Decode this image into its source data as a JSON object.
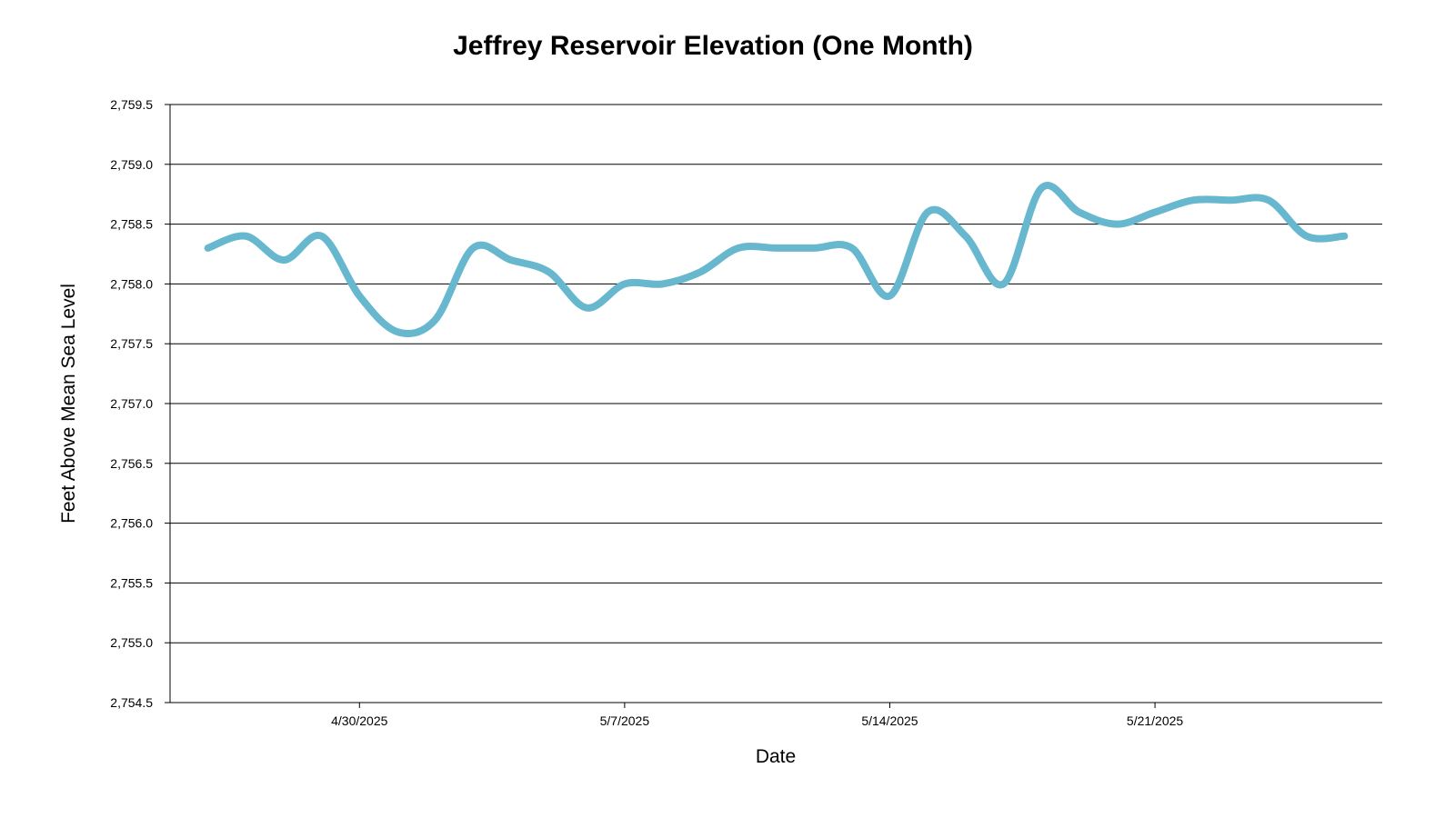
{
  "chart_data": {
    "type": "line",
    "title": "Jeffrey Reservoir Elevation (One Month)",
    "x_label": "Date",
    "y_label": "Feet Above Mean Sea Level",
    "x": [
      "4/26/2025",
      "4/27/2025",
      "4/28/2025",
      "4/29/2025",
      "4/30/2025",
      "5/1/2025",
      "5/2/2025",
      "5/3/2025",
      "5/4/2025",
      "5/5/2025",
      "5/6/2025",
      "5/7/2025",
      "5/8/2025",
      "5/9/2025",
      "5/10/2025",
      "5/11/2025",
      "5/12/2025",
      "5/13/2025",
      "5/14/2025",
      "5/15/2025",
      "5/16/2025",
      "5/17/2025",
      "5/18/2025",
      "5/19/2025",
      "5/20/2025",
      "5/21/2025",
      "5/22/2025",
      "5/23/2025",
      "5/24/2025",
      "5/25/2025",
      "5/26/2025"
    ],
    "series": [
      {
        "name": "Elevation",
        "color": "#67b7cf",
        "values": [
          2758.3,
          2758.4,
          2758.2,
          2758.4,
          2757.9,
          2757.6,
          2757.7,
          2758.3,
          2758.2,
          2758.1,
          2757.8,
          2758.0,
          2758.0,
          2758.1,
          2758.3,
          2758.3,
          2758.3,
          2758.3,
          2757.9,
          2758.6,
          2758.4,
          2758.0,
          2758.8,
          2758.6,
          2758.5,
          2758.6,
          2758.7,
          2758.7,
          2758.7,
          2758.4,
          2758.4
        ]
      }
    ],
    "xlim": [
      "4/25/2025",
      "5/27/2025"
    ],
    "xticks": [
      "4/30/2025",
      "5/7/2025",
      "5/14/2025",
      "5/21/2025"
    ],
    "ylim": [
      2754.5,
      2759.5
    ],
    "yticks": [
      {
        "value": 2754.5,
        "label": "2,754.5"
      },
      {
        "value": 2755.0,
        "label": "2,755.0"
      },
      {
        "value": 2755.5,
        "label": "2,755.5"
      },
      {
        "value": 2756.0,
        "label": "2,756.0"
      },
      {
        "value": 2756.5,
        "label": "2,756.5"
      },
      {
        "value": 2757.0,
        "label": "2,757.0"
      },
      {
        "value": 2757.5,
        "label": "2,757.5"
      },
      {
        "value": 2758.0,
        "label": "2,758.0"
      },
      {
        "value": 2758.5,
        "label": "2,758.5"
      },
      {
        "value": 2759.0,
        "label": "2,759.0"
      },
      {
        "value": 2759.5,
        "label": "2,759.5"
      }
    ],
    "grid": true
  }
}
